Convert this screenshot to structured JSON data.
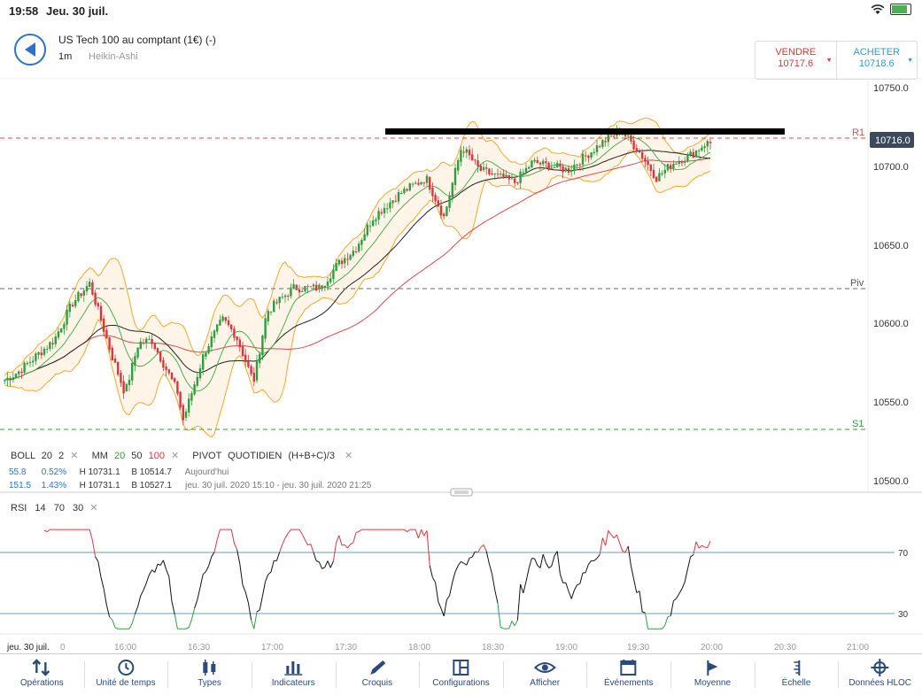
{
  "status_bar": {
    "time": "19:58",
    "date": "Jeu. 30 juil.",
    "wifi_icon": "wifi-icon",
    "battery_icon": "battery-icon"
  },
  "header": {
    "instrument": "US Tech 100 au comptant (1€) (-)",
    "timeframe": "1m",
    "chart_type": "Heikin-Ashi",
    "sell": {
      "label": "VENDRE",
      "price": "10717.6"
    },
    "buy": {
      "label": "ACHETER",
      "price": "10718.6"
    }
  },
  "price_axis": {
    "ticks": [
      "10750.0",
      "10700.0",
      "10650.0",
      "10600.0",
      "10550.0",
      "10500.0"
    ],
    "current_price": "10716.0"
  },
  "levels": {
    "r1": "R1",
    "piv": "Piv",
    "s1": "S1"
  },
  "indicators": {
    "boll": {
      "name": "BOLL",
      "p1": "20",
      "p2": "2"
    },
    "mm": {
      "name": "MM",
      "p1": "20",
      "p2": "50",
      "p3": "100"
    },
    "pivot": {
      "name": "PIVOT",
      "p1": "QUOTIDIEN",
      "p2": "(H+B+C)/3"
    },
    "row1": {
      "a": "55.8",
      "b": "0.52%",
      "h": "H 10731.1",
      "l": "B 10514.7",
      "period": "Aujourd'hui"
    },
    "row2": {
      "a": "151.5",
      "b": "1.43%",
      "h": "H 10731.1",
      "l": "B 10527.1",
      "period": "jeu. 30 juil. 2020 15:10 - jeu. 30 juil. 2020 21:25"
    },
    "rsi": {
      "name": "RSI",
      "p1": "14",
      "p2": "70",
      "p3": "30"
    }
  },
  "rsi_axis": {
    "upper": "70",
    "lower": "30"
  },
  "time_axis": {
    "first": "jeu. 30 juil.",
    "zero": "0",
    "ticks": [
      "16:00",
      "16:30",
      "17:00",
      "17:30",
      "18:00",
      "18:30",
      "19:00",
      "19:30",
      "20:00",
      "20:30",
      "21:00"
    ]
  },
  "tabs": [
    {
      "label": "Opérations",
      "icon": "sort-arrows-icon"
    },
    {
      "label": "Unité de temps",
      "icon": "clock-icon"
    },
    {
      "label": "Types",
      "icon": "candlestick-icon"
    },
    {
      "label": "Indicateurs",
      "icon": "bar-chart-icon"
    },
    {
      "label": "Croquis",
      "icon": "pencil-icon"
    },
    {
      "label": "Configurations",
      "icon": "layout-icon"
    },
    {
      "label": "Afficher",
      "icon": "eye-icon"
    },
    {
      "label": "Événements",
      "icon": "calendar-icon"
    },
    {
      "label": "Moyenne",
      "icon": "flag-icon"
    },
    {
      "label": "Échelle",
      "icon": "scale-icon"
    },
    {
      "label": "Données HLOC",
      "icon": "crosshair-icon"
    }
  ],
  "colors": {
    "up": "#2e9f3e",
    "down": "#d9363e",
    "boll": "#f0a830",
    "mm20": "#4caf50",
    "mm50": "#222222",
    "mm100": "#e0474c",
    "rsi_line": "#2a73a7",
    "r1": "#e0474c",
    "s1": "#2e9f3e",
    "piv": "#888888"
  }
}
